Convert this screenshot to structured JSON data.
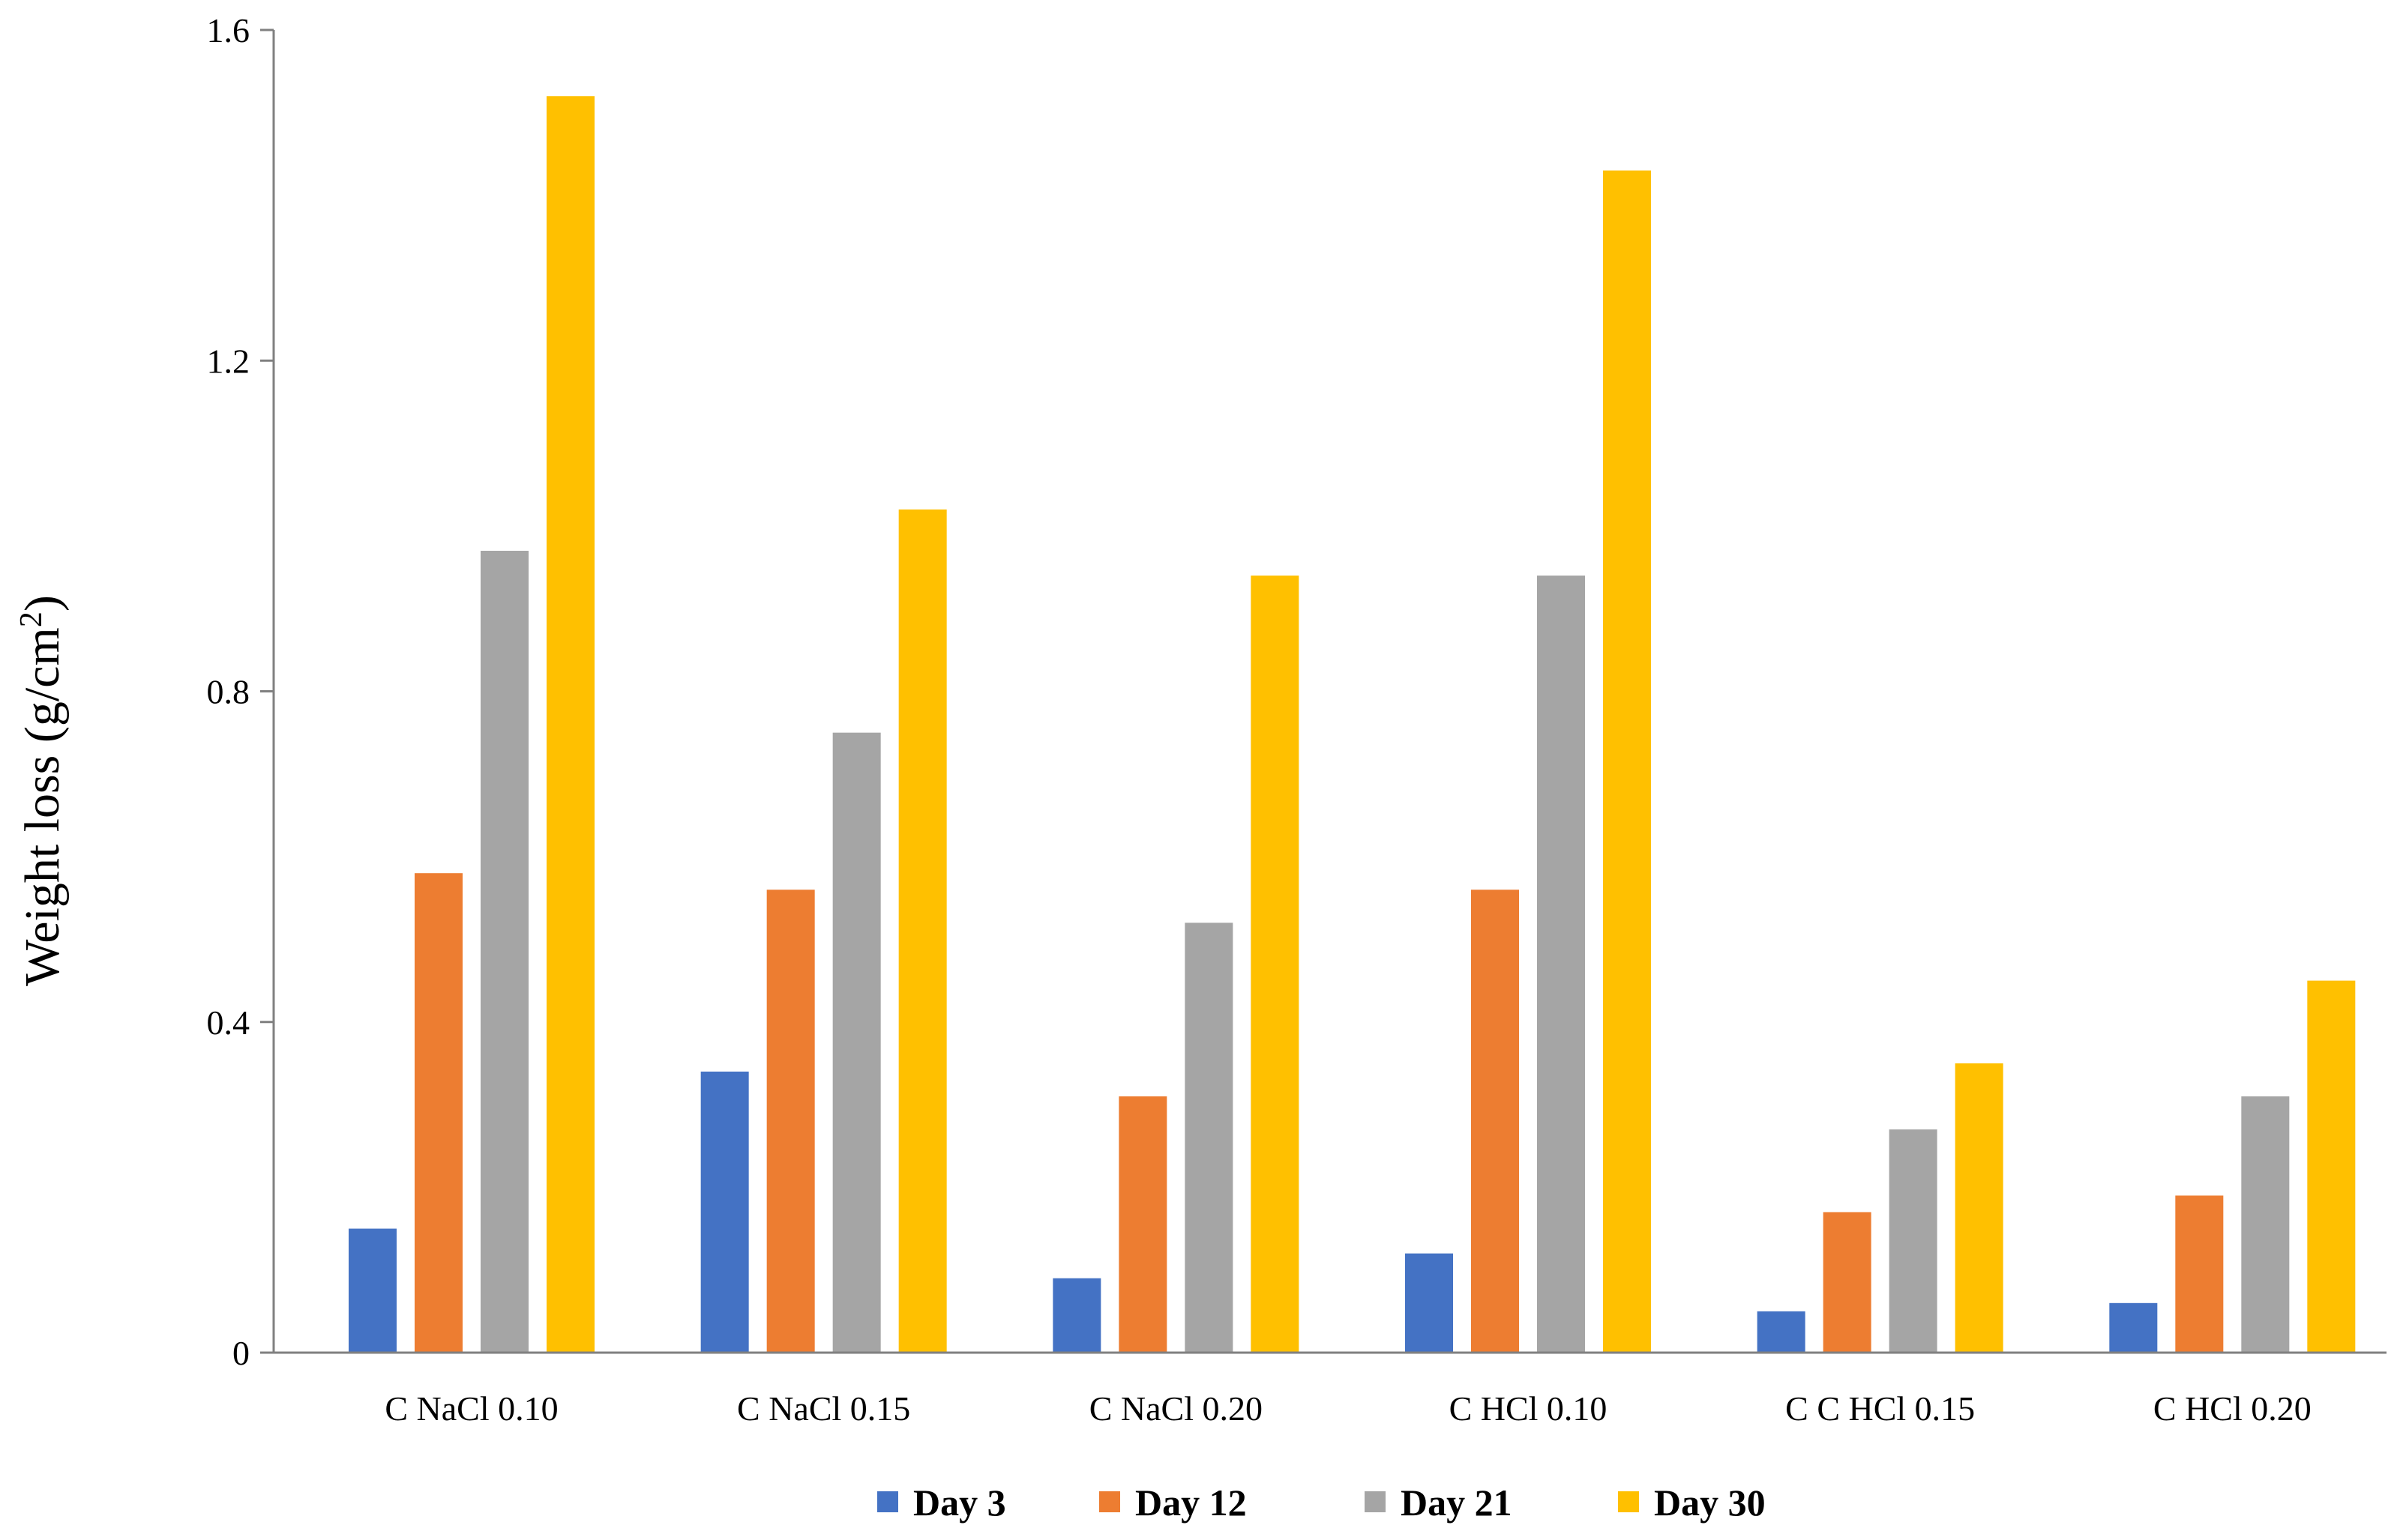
{
  "chart_data": {
    "type": "bar",
    "title": "",
    "xlabel": "",
    "ylabel": "Weight loss (g/cm",
    "ylabel_sup": "2",
    "ylabel_close": ")",
    "ylim": [
      0,
      1.6
    ],
    "yticks": [
      "0",
      "0.4",
      "0.8",
      "1.2",
      "1.6"
    ],
    "ytick_values": [
      0,
      0.4,
      0.8,
      1.2,
      1.6
    ],
    "grid": false,
    "legend_position": "bottom",
    "categories": [
      "C NaCl 0.10",
      "C NaCl 0.15",
      "C NaCl 0.20",
      "C HCl 0.10",
      "C C HCl 0.15",
      "C HCl 0.20"
    ],
    "series": [
      {
        "name": "Day 3",
        "color": "#4472C4",
        "values": [
          0.15,
          0.34,
          0.09,
          0.12,
          0.05,
          0.06
        ]
      },
      {
        "name": "Day 12",
        "color": "#ED7D31",
        "values": [
          0.58,
          0.56,
          0.31,
          0.56,
          0.17,
          0.19
        ]
      },
      {
        "name": "Day 21",
        "color": "#A5A5A5",
        "values": [
          0.97,
          0.75,
          0.52,
          0.94,
          0.27,
          0.31
        ]
      },
      {
        "name": "Day 30",
        "color": "#FFC000",
        "values": [
          1.52,
          1.02,
          0.94,
          1.43,
          0.35,
          0.45
        ]
      }
    ]
  }
}
